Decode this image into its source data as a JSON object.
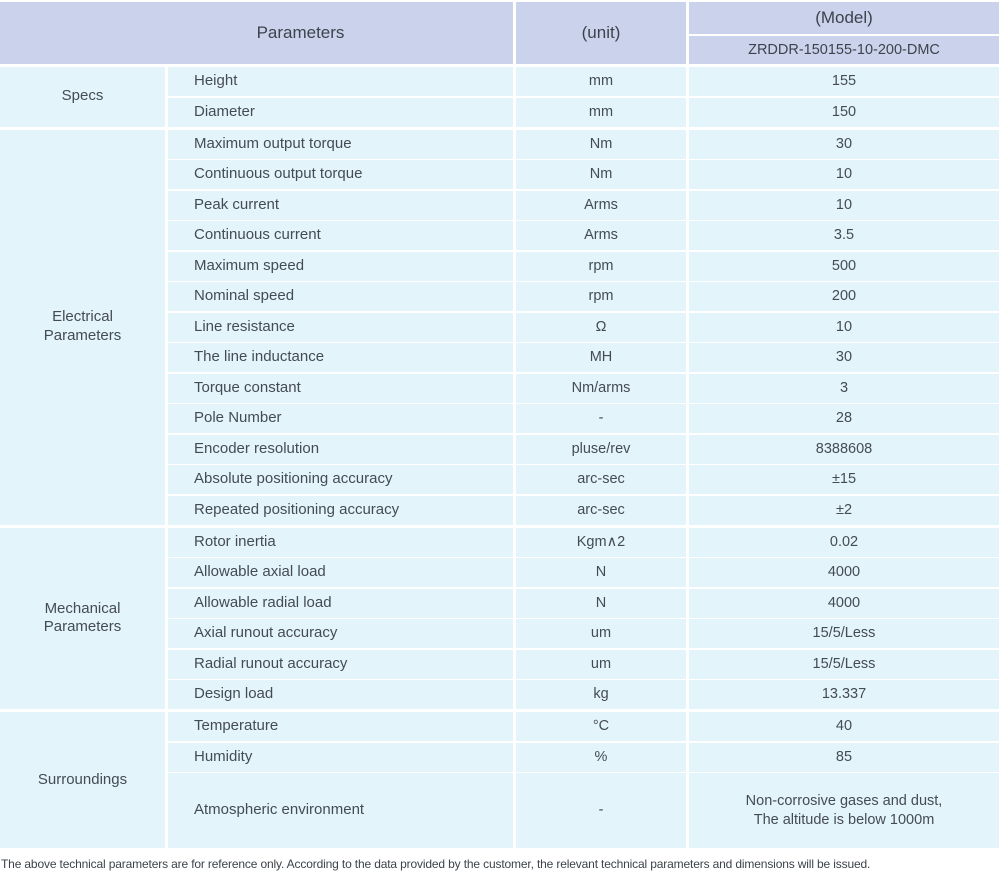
{
  "colors": {
    "header_bg": "#cbd3ec",
    "cell_bg": "#e3f4fb",
    "header_text": "#3c434c",
    "cell_text": "#454b54"
  },
  "table": {
    "header": {
      "parameters_label": "Parameters",
      "unit_label": "(unit)",
      "model_label": "(Model)",
      "model_value": "ZRDDR-150155-10-200-DMC"
    },
    "groups": [
      {
        "name": "Specs",
        "rows": [
          {
            "name": "Height",
            "unit": "mm",
            "value": "155"
          },
          {
            "name": "Diameter",
            "unit": "mm",
            "value": "150"
          }
        ]
      },
      {
        "name": "Electrical Parameters",
        "rows": [
          {
            "name": "Maximum output torque",
            "unit": "Nm",
            "value": "30"
          },
          {
            "name": "Continuous output torque",
            "unit": "Nm",
            "value": "10"
          },
          {
            "name": "Peak current",
            "unit": "Arms",
            "value": "10"
          },
          {
            "name": "Continuous current",
            "unit": "Arms",
            "value": "3.5"
          },
          {
            "name": "Maximum speed",
            "unit": "rpm",
            "value": "500"
          },
          {
            "name": "Nominal speed",
            "unit": "rpm",
            "value": "200"
          },
          {
            "name": "Line resistance",
            "unit": "Ω",
            "value": "10"
          },
          {
            "name": "The line inductance",
            "unit": "MH",
            "value": "30"
          },
          {
            "name": "Torque constant",
            "unit": "Nm/arms",
            "value": "3"
          },
          {
            "name": "Pole Number",
            "unit": "-",
            "value": "28"
          },
          {
            "name": "Encoder resolution",
            "unit": "pluse/rev",
            "value": "8388608"
          },
          {
            "name": "Absolute positioning accuracy",
            "unit": "arc-sec",
            "value": "±15"
          },
          {
            "name": "Repeated positioning accuracy",
            "unit": "arc-sec",
            "value": "±2"
          }
        ]
      },
      {
        "name": "Mechanical Parameters",
        "rows": [
          {
            "name": "Rotor inertia",
            "unit": "Kgm∧2",
            "value": "0.02"
          },
          {
            "name": "Allowable axial load",
            "unit": "N",
            "value": "4000"
          },
          {
            "name": "Allowable radial load",
            "unit": "N",
            "value": "4000"
          },
          {
            "name": "Axial runout accuracy",
            "unit": "um",
            "value": "15/5/Less"
          },
          {
            "name": "Radial runout accuracy",
            "unit": "um",
            "value": "15/5/Less"
          },
          {
            "name": "Design load",
            "unit": "kg",
            "value": "13.337"
          }
        ]
      },
      {
        "name": "Surroundings",
        "rows": [
          {
            "name": "Temperature",
            "unit": "°C",
            "value": "40"
          },
          {
            "name": "Humidity",
            "unit": "%",
            "value": "85"
          },
          {
            "name": "Atmospheric environment",
            "unit": "-",
            "value": "Non-corrosive gases and dust,\nThe altitude is below 1000m",
            "tall": true
          }
        ]
      }
    ]
  },
  "footnote": "The above technical parameters are for reference only. According to the data provided by the customer, the relevant technical parameters and dimensions will be issued."
}
